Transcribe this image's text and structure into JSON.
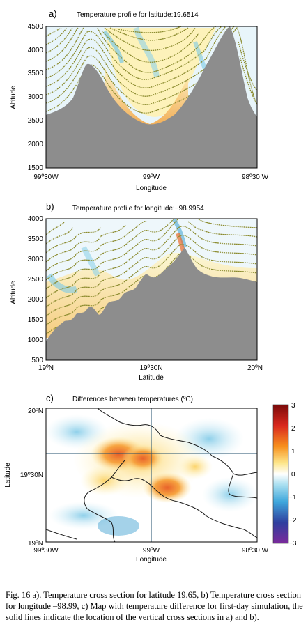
{
  "panel_a": {
    "letter": "a)",
    "title": "Temperature profile for latitude:19.6514",
    "ylabel": "Altitude",
    "xlabel": "Longitude",
    "yticks": [
      "1500",
      "2000",
      "2500",
      "3000",
      "3500",
      "4000",
      "4500"
    ],
    "xticks": [
      "99º30W",
      "99ºW",
      "98º30 W"
    ]
  },
  "panel_b": {
    "letter": "b)",
    "title": "Temperature profile for longitude:−98.9954",
    "ylabel": "Altitude",
    "xlabel": "Latitude",
    "yticks": [
      "500",
      "1000",
      "1500",
      "2000",
      "2500",
      "3000",
      "3500",
      "4000"
    ],
    "xticks": [
      "19ºN",
      "19º30N",
      "20ºN"
    ]
  },
  "panel_c": {
    "letter": "c)",
    "title": "Differences between temperatures (ºC)",
    "ylabel": "Latitude",
    "xlabel": "Longitude",
    "yticks": [
      "20ºN",
      "19º30N",
      "19ºN"
    ],
    "xticks": [
      "99º30W",
      "99ºW",
      "98º30 W"
    ],
    "colorbar_ticks": [
      "3",
      "2",
      "1",
      "0",
      "−1",
      "−2",
      "−3"
    ]
  },
  "caption": "Fig. 16 a). Temperature cross section for latitude 19.65, b) Temperature cross section for longitude –98.99, c) Map with temperature difference for first-day simulation, the solid lines indicate the location of the vertical cross sections in a) and b).",
  "chart_data": [
    {
      "type": "area",
      "title": "Temperature profile for latitude:19.6514",
      "xlabel": "Longitude",
      "ylabel": "Altitude",
      "ylim": [
        1500,
        4500
      ],
      "x_ticks": [
        "99º30W",
        "99ºW",
        "98º30 W"
      ],
      "terrain_x": [
        -99.5,
        -99.45,
        -99.4,
        -99.35,
        -99.3,
        -99.27,
        -99.25,
        -99.2,
        -99.15,
        -99.1,
        -99.05,
        -99.0,
        -98.95,
        -98.9,
        -98.85,
        -98.8,
        -98.75,
        -98.73,
        -98.7,
        -98.65,
        -98.6,
        -98.55,
        -98.5
      ],
      "terrain_altitude": [
        2600,
        2700,
        3100,
        3500,
        3650,
        3500,
        3300,
        2900,
        2650,
        2500,
        2430,
        2400,
        2420,
        2500,
        2600,
        2750,
        3300,
        4500,
        3600,
        3000,
        2800,
        2650,
        2550
      ]
    },
    {
      "type": "area",
      "title": "Temperature profile for longitude:−98.9954",
      "xlabel": "Latitude",
      "ylabel": "Altitude",
      "ylim": [
        500,
        4000
      ],
      "x_ticks": [
        "19ºN",
        "19º30N",
        "20ºN"
      ],
      "terrain_x": [
        19.0,
        19.05,
        19.1,
        19.15,
        19.2,
        19.25,
        19.3,
        19.35,
        19.4,
        19.45,
        19.5,
        19.55,
        19.58,
        19.6,
        19.65,
        19.7,
        19.75,
        19.8,
        19.85,
        19.9,
        19.95,
        20.0
      ],
      "terrain_altitude": [
        1000,
        1200,
        1150,
        1400,
        1300,
        1500,
        1600,
        2000,
        2100,
        2500,
        2200,
        2700,
        3100,
        2800,
        2600,
        2400,
        2300,
        2200,
        2100,
        2000,
        2100,
        1950
      ]
    },
    {
      "type": "heatmap",
      "title": "Differences between temperatures (ºC)",
      "xlabel": "Longitude",
      "ylabel": "Latitude",
      "x_ticks": [
        "99º30W",
        "99ºW",
        "98º30 W"
      ],
      "y_ticks": [
        "20ºN",
        "19º30N",
        "19ºN"
      ],
      "colorbar_range": [
        -3,
        3
      ],
      "colorbar_ticks": [
        3,
        2,
        1,
        0,
        -1,
        -2,
        -3
      ],
      "cross_section_latitude": 19.6514,
      "cross_section_longitude": -98.9954
    }
  ]
}
